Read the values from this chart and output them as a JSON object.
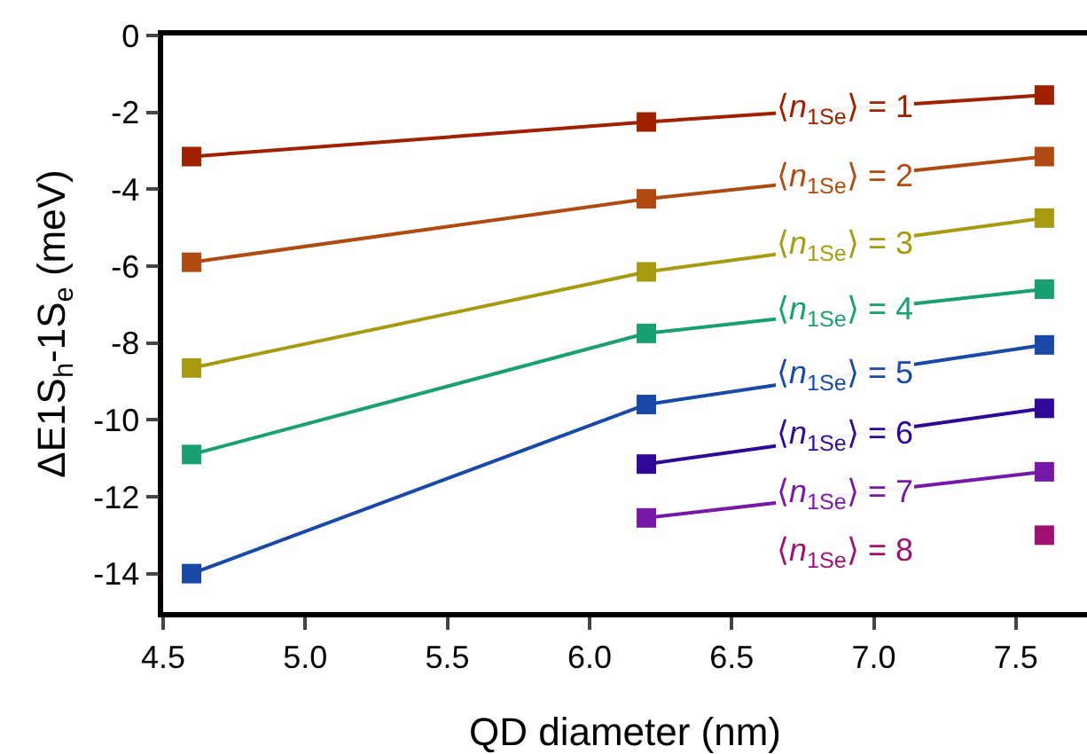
{
  "chart_data": {
    "type": "line",
    "xlabel": "QD diameter (nm)",
    "ylabel": "ΔE1S$_{h}$-1S$_{e}$ (meV)",
    "x": [
      4.6,
      6.2,
      7.6
    ],
    "series": [
      {
        "name": "⟨n$_{1Se}$⟩ = 1",
        "color": "#a02000",
        "values": [
          -3.15,
          -2.25,
          -1.55
        ]
      },
      {
        "name": "⟨n$_{1Se}$⟩ = 2",
        "color": "#b04a10",
        "values": [
          -5.9,
          -4.25,
          -3.15
        ]
      },
      {
        "name": "⟨n$_{1Se}$⟩ = 3",
        "color": "#a89a10",
        "values": [
          -8.65,
          -6.15,
          -4.75
        ]
      },
      {
        "name": "⟨n$_{1Se}$⟩ = 4",
        "color": "#18a070",
        "values": [
          -10.9,
          -7.75,
          -6.6
        ]
      },
      {
        "name": "⟨n$_{1Se}$⟩ = 5",
        "color": "#1848a8",
        "values": [
          -14.0,
          -9.6,
          -8.05
        ]
      },
      {
        "name": "⟨n$_{1Se}$⟩ = 6",
        "color": "#300898",
        "values": [
          null,
          -11.15,
          -9.7
        ]
      },
      {
        "name": "⟨n$_{1Se}$⟩ = 7",
        "color": "#7818a8",
        "values": [
          null,
          -12.55,
          -11.35
        ]
      },
      {
        "name": "⟨n$_{1Se}$⟩ = 8",
        "color": "#a01070",
        "values": [
          null,
          null,
          -13.0
        ]
      }
    ],
    "xlim": [
      4.5,
      7.75
    ],
    "xticks": [
      {
        "value": 4.5,
        "label": "4.5"
      },
      {
        "value": 5,
        "label": "5.0"
      },
      {
        "value": 5.5,
        "label": "5.5"
      },
      {
        "value": 6,
        "label": "6.0"
      },
      {
        "value": 6.5,
        "label": "6.5"
      },
      {
        "value": 7,
        "label": "7.0"
      },
      {
        "value": 7.5,
        "label": "7.5"
      }
    ],
    "ylim": [
      -15,
      0
    ],
    "yticks": [
      0,
      -2,
      -4,
      -6,
      -8,
      -10,
      -12,
      -14
    ],
    "grid": false,
    "legend": false,
    "marker": "square",
    "line_style": "solid"
  }
}
